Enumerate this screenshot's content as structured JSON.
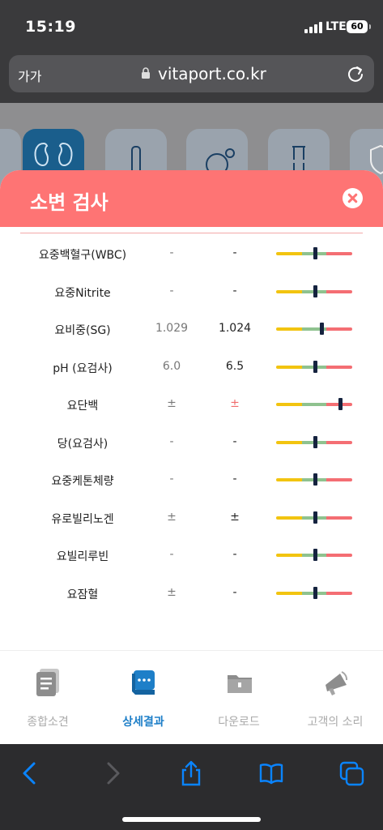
{
  "status_bar": {
    "time": "15:19",
    "network": "LTE",
    "battery": "60"
  },
  "browser": {
    "text_size_label": "가가",
    "domain": "vitaport.co.kr"
  },
  "sheet": {
    "title": "소변 검사",
    "rows": [
      {
        "name": "요중백혈구(WBC)",
        "prev": "-",
        "curr": "-",
        "gauge_level": 0.52
      },
      {
        "name": "요중Nitrite",
        "prev": "-",
        "curr": "-",
        "gauge_level": 0.52
      },
      {
        "name": "요비중(SG)",
        "prev": "1.029",
        "curr": "1.024",
        "gauge_level": 0.6
      },
      {
        "name": "pH (요검사)",
        "prev": "6.0",
        "curr": "6.5",
        "gauge_level": 0.52
      },
      {
        "name": "요단백",
        "prev": "±",
        "curr": "±",
        "gauge_level": 0.85
      },
      {
        "name": "당(요검사)",
        "prev": "-",
        "curr": "-",
        "gauge_level": 0.52
      },
      {
        "name": "요중케톤체량",
        "prev": "-",
        "curr": "-",
        "gauge_level": 0.52
      },
      {
        "name": "유로빌리노겐",
        "prev": "±",
        "curr": "±",
        "gauge_level": 0.52
      },
      {
        "name": "요빌리루빈",
        "prev": "-",
        "curr": "-",
        "gauge_level": 0.52
      },
      {
        "name": "요잠혈",
        "prev": "±",
        "curr": "-",
        "gauge_level": 0.52
      }
    ]
  },
  "tabs": [
    {
      "label": "종합소견",
      "icon": "document-icon"
    },
    {
      "label": "상세결과",
      "icon": "chat-bubble-icon"
    },
    {
      "label": "다운로드",
      "icon": "folder-icon"
    },
    {
      "label": "고객의 소리",
      "icon": "megaphone-icon"
    }
  ],
  "colors": {
    "sheet_header": "#fe7474",
    "active_tab": "#1e7fc8",
    "gauge_low": "#f2c410",
    "gauge_normal": "#8fc28f",
    "gauge_high": "#f46e73",
    "safari_accent": "#0a84ff"
  }
}
